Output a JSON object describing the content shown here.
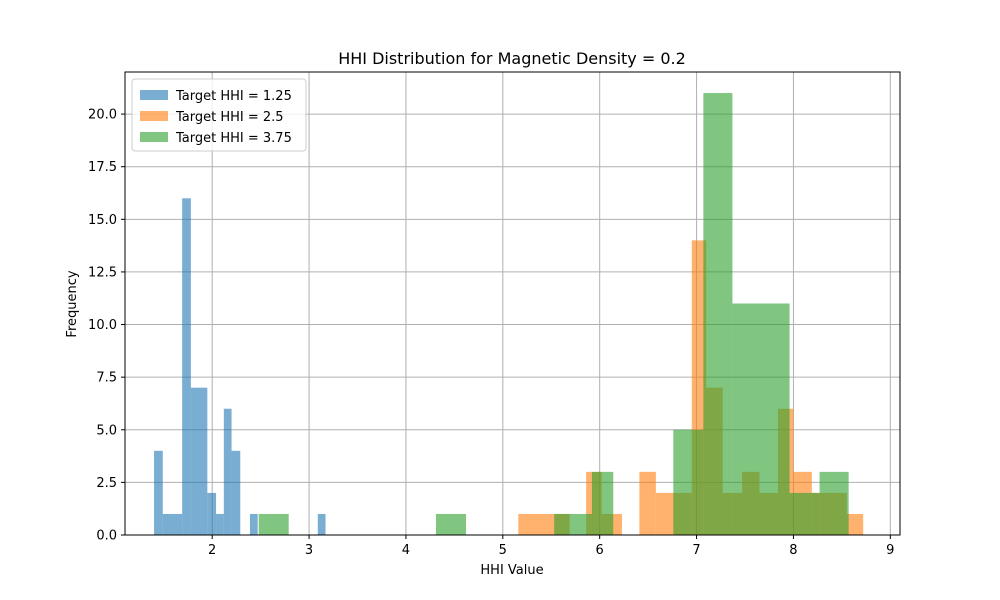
{
  "chart_data": {
    "type": "bar",
    "title": "HHI Distribution for Magnetic Density = 0.2",
    "xlabel": "HHI Value",
    "ylabel": "Frequency",
    "xlim": [
      1.1,
      9.1
    ],
    "ylim": [
      0,
      22
    ],
    "xticks": [
      2,
      3,
      4,
      5,
      6,
      7,
      8,
      9
    ],
    "xtick_labels": [
      "2",
      "3",
      "4",
      "5",
      "6",
      "7",
      "8",
      "9"
    ],
    "yticks": [
      0,
      2.5,
      5,
      7.5,
      10,
      12.5,
      15,
      17.5,
      20
    ],
    "ytick_labels": [
      "0.0",
      "2.5",
      "5.0",
      "7.5",
      "10.0",
      "12.5",
      "15.0",
      "17.5",
      "20.0"
    ],
    "grid": true,
    "legend_position": "top-left",
    "bar_alpha": 0.6,
    "series": [
      {
        "name": "Target HHI = 1.25",
        "color": "#1f77b4",
        "bins": [
          {
            "x0": 1.4,
            "x1": 1.49,
            "count": 4
          },
          {
            "x0": 1.49,
            "x1": 1.58,
            "count": 1
          },
          {
            "x0": 1.58,
            "x1": 1.69,
            "count": 1
          },
          {
            "x0": 1.69,
            "x1": 1.78,
            "count": 16
          },
          {
            "x0": 1.78,
            "x1": 1.95,
            "count": 7
          },
          {
            "x0": 1.95,
            "x1": 2.04,
            "count": 2
          },
          {
            "x0": 2.04,
            "x1": 2.12,
            "count": 1
          },
          {
            "x0": 2.12,
            "x1": 2.2,
            "count": 6
          },
          {
            "x0": 2.2,
            "x1": 2.29,
            "count": 4
          },
          {
            "x0": 2.39,
            "x1": 2.47,
            "count": 1
          },
          {
            "x0": 3.09,
            "x1": 3.17,
            "count": 1
          }
        ]
      },
      {
        "name": "Target HHI = 2.5",
        "color": "#ff7f0e",
        "bins": [
          {
            "x0": 5.16,
            "x1": 5.54,
            "count": 1
          },
          {
            "x0": 5.54,
            "x1": 5.69,
            "count": 1
          },
          {
            "x0": 5.86,
            "x1": 6.02,
            "count": 3
          },
          {
            "x0": 6.02,
            "x1": 6.23,
            "count": 1
          },
          {
            "x0": 6.41,
            "x1": 6.58,
            "count": 3
          },
          {
            "x0": 6.58,
            "x1": 6.95,
            "count": 2
          },
          {
            "x0": 6.95,
            "x1": 7.1,
            "count": 14
          },
          {
            "x0": 7.1,
            "x1": 7.27,
            "count": 7
          },
          {
            "x0": 7.27,
            "x1": 7.47,
            "count": 2
          },
          {
            "x0": 7.47,
            "x1": 7.65,
            "count": 3
          },
          {
            "x0": 7.65,
            "x1": 7.84,
            "count": 2
          },
          {
            "x0": 7.84,
            "x1": 8.0,
            "count": 6
          },
          {
            "x0": 8.0,
            "x1": 8.19,
            "count": 3
          },
          {
            "x0": 8.19,
            "x1": 8.55,
            "count": 2
          },
          {
            "x0": 8.55,
            "x1": 8.72,
            "count": 1
          }
        ]
      },
      {
        "name": "Target HHI = 3.75",
        "color": "#2ca02c",
        "bins": [
          {
            "x0": 2.48,
            "x1": 2.79,
            "count": 1
          },
          {
            "x0": 4.31,
            "x1": 4.62,
            "count": 1
          },
          {
            "x0": 5.53,
            "x1": 5.73,
            "count": 1
          },
          {
            "x0": 5.73,
            "x1": 5.92,
            "count": 1
          },
          {
            "x0": 5.92,
            "x1": 6.14,
            "count": 3
          },
          {
            "x0": 6.76,
            "x1": 6.96,
            "count": 5
          },
          {
            "x0": 6.96,
            "x1": 7.07,
            "count": 5
          },
          {
            "x0": 7.07,
            "x1": 7.37,
            "count": 21
          },
          {
            "x0": 7.37,
            "x1": 7.96,
            "count": 11
          },
          {
            "x0": 7.96,
            "x1": 8.27,
            "count": 2
          },
          {
            "x0": 8.27,
            "x1": 8.57,
            "count": 3
          }
        ]
      }
    ]
  }
}
